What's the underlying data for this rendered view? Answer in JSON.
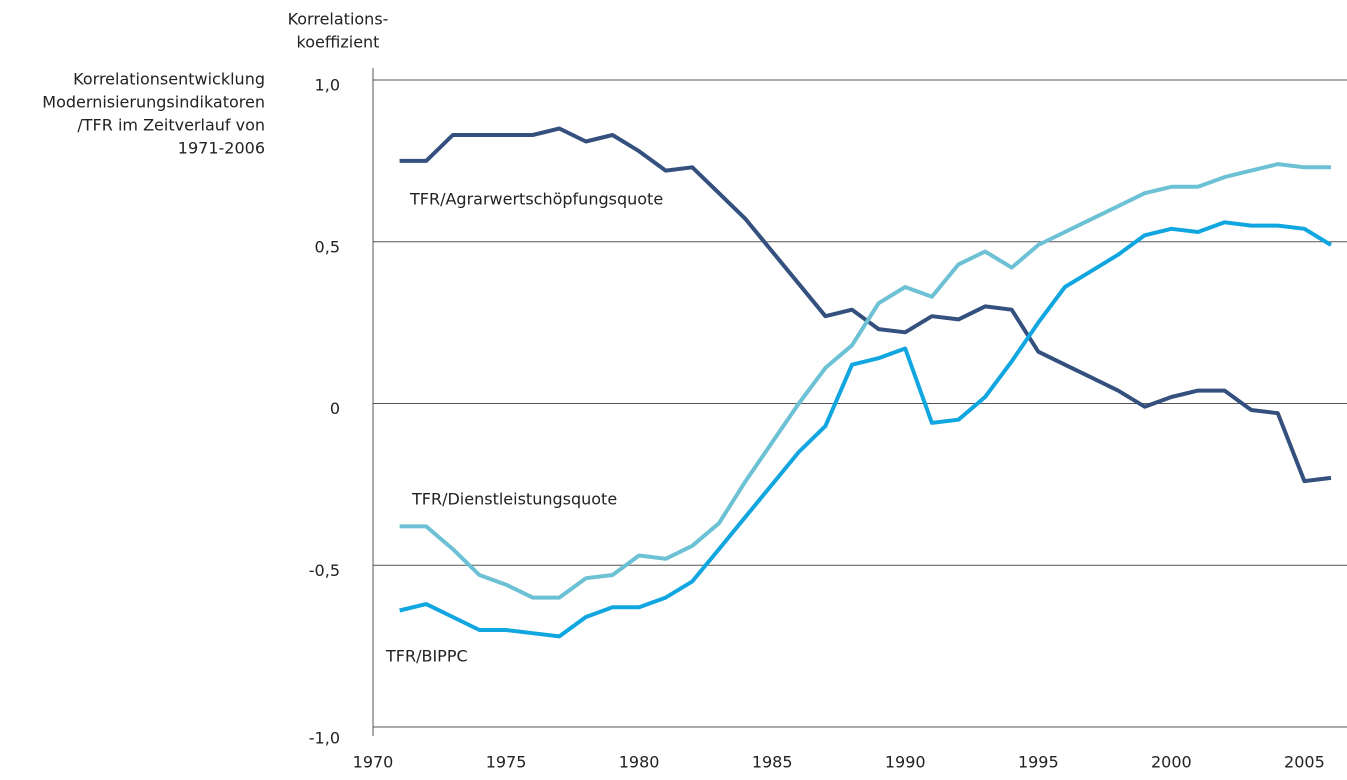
{
  "chart_data": {
    "type": "line",
    "title": [
      "Korrelationsentwicklung",
      "Modernisierungsindikatoren",
      "/TFR im Zeitverlauf von",
      "1971-2006"
    ],
    "y_label": [
      "Korrelations-",
      "koeffizient"
    ],
    "x": [
      1971,
      1972,
      1973,
      1974,
      1975,
      1976,
      1977,
      1978,
      1979,
      1980,
      1981,
      1982,
      1983,
      1984,
      1985,
      1986,
      1987,
      1988,
      1989,
      1990,
      1991,
      1992,
      1993,
      1994,
      1995,
      1996,
      1997,
      1998,
      1999,
      2000,
      2001,
      2002,
      2003,
      2004,
      2005,
      2006
    ],
    "series": [
      {
        "name": "TFR/Agrarwertschöpfungsquote",
        "color": "#34507e",
        "values": [
          0.75,
          0.75,
          0.83,
          0.83,
          0.83,
          0.83,
          0.85,
          0.81,
          0.83,
          0.78,
          0.72,
          0.73,
          0.65,
          0.57,
          0.47,
          0.37,
          0.27,
          0.29,
          0.23,
          0.22,
          0.27,
          0.26,
          0.3,
          0.29,
          0.16,
          0.12,
          0.08,
          0.04,
          -0.01,
          0.02,
          0.04,
          0.04,
          -0.02,
          -0.03,
          -0.24,
          -0.23
        ]
      },
      {
        "name": "TFR/Dienstleistungsquote",
        "color": "#6cc1d4",
        "values": [
          -0.38,
          -0.38,
          -0.45,
          -0.53,
          -0.56,
          -0.6,
          -0.6,
          -0.54,
          -0.53,
          -0.47,
          -0.48,
          -0.44,
          -0.37,
          -0.24,
          -0.12,
          0.0,
          0.11,
          0.18,
          0.31,
          0.36,
          0.33,
          0.43,
          0.47,
          0.42,
          0.49,
          0.53,
          0.57,
          0.61,
          0.65,
          0.67,
          0.67,
          0.7,
          0.72,
          0.74,
          0.73,
          0.73
        ]
      },
      {
        "name": "TFR/BIPPC",
        "color": "#11a6e0",
        "values": [
          -0.64,
          -0.62,
          -0.66,
          -0.7,
          -0.7,
          -0.71,
          -0.72,
          -0.66,
          -0.63,
          -0.63,
          -0.6,
          -0.55,
          -0.45,
          -0.35,
          -0.25,
          -0.15,
          -0.07,
          0.12,
          0.14,
          0.17,
          -0.06,
          -0.05,
          0.02,
          0.13,
          0.25,
          0.36,
          0.41,
          0.46,
          0.52,
          0.54,
          0.53,
          0.56,
          0.55,
          0.55,
          0.54,
          0.49
        ]
      }
    ],
    "xlim": [
      1970,
      2006.6
    ],
    "xticks": [
      1970,
      1975,
      1980,
      1985,
      1990,
      1995,
      2000,
      2005
    ],
    "ylim": [
      -1,
      1
    ],
    "yticks": [
      {
        "value": 1,
        "label": "1,0"
      },
      {
        "value": 0.5,
        "label": "0,5"
      },
      0,
      {
        "value": -0.5,
        "label": "-0,5"
      },
      {
        "value": -1,
        "label": "-1,0"
      }
    ],
    "grid": true
  }
}
